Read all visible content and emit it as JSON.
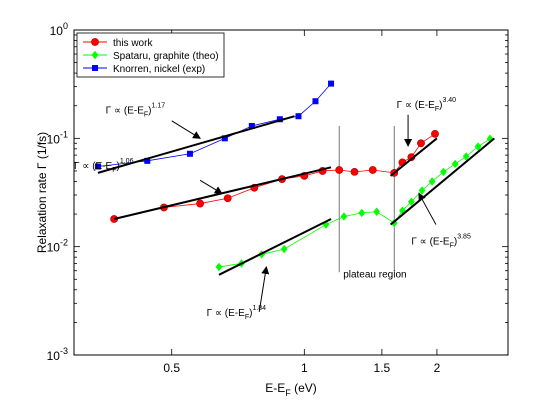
{
  "chart_data": {
    "type": "scatter",
    "xscale": "log",
    "yscale": "log",
    "xlim": [
      0.3,
      2.9
    ],
    "ylim": [
      0.001,
      1
    ],
    "xlabel_main": "E-E",
    "xlabel_sub": "F",
    "xlabel_unit": " (eV)",
    "ylabel": "Relaxation rate Γ (1/fs)",
    "x_ticks": [
      {
        "value": 0.5,
        "label": "0.5"
      },
      {
        "value": 1,
        "label": "1"
      },
      {
        "value": 1.5,
        "label": "1.5"
      },
      {
        "value": 2,
        "label": "2"
      }
    ],
    "y_ticks": [
      {
        "value": 0.001,
        "base": "10",
        "exp": "-3"
      },
      {
        "value": 0.01,
        "base": "10",
        "exp": "-2"
      },
      {
        "value": 0.1,
        "base": "10",
        "exp": "-1"
      },
      {
        "value": 1,
        "base": "10",
        "exp": "0"
      }
    ],
    "legend": {
      "position": "top-left",
      "entries": [
        {
          "name": "this work",
          "color": "#ff0000",
          "marker": "circle"
        },
        {
          "name": "Spataru, graphite (theo)",
          "color": "#00ff00",
          "marker": "diamond"
        },
        {
          "name": "Knorren, nickel (exp)",
          "color": "#0000ff",
          "marker": "square"
        }
      ]
    },
    "series": [
      {
        "name": "this work",
        "color": "#ff0000",
        "marker": "circle",
        "x": [
          0.37,
          0.48,
          0.58,
          0.67,
          0.77,
          0.89,
          1.0,
          1.1,
          1.2,
          1.3,
          1.43,
          1.6,
          1.67,
          1.75,
          1.84,
          1.98
        ],
        "y": [
          0.018,
          0.023,
          0.025,
          0.028,
          0.035,
          0.042,
          0.045,
          0.05,
          0.051,
          0.049,
          0.051,
          0.048,
          0.06,
          0.067,
          0.09,
          0.11
        ]
      },
      {
        "name": "Spataru, graphite (theo)",
        "color": "#00ff00",
        "marker": "diamond",
        "x": [
          0.64,
          0.72,
          0.8,
          0.9,
          1.12,
          1.23,
          1.35,
          1.46,
          1.6,
          1.67,
          1.75,
          1.85,
          1.95,
          2.07,
          2.2,
          2.33,
          2.48,
          2.64
        ],
        "y": [
          0.0065,
          0.007,
          0.0085,
          0.0095,
          0.016,
          0.019,
          0.0205,
          0.021,
          0.0165,
          0.0215,
          0.026,
          0.033,
          0.04,
          0.049,
          0.058,
          0.068,
          0.084,
          0.099
        ]
      },
      {
        "name": "Knorren, nickel (exp)",
        "color": "#0000ff",
        "marker": "square",
        "x": [
          0.34,
          0.44,
          0.55,
          0.66,
          0.76,
          0.88,
          0.97,
          1.06,
          1.15
        ],
        "y": [
          0.055,
          0.062,
          0.072,
          0.1,
          0.13,
          0.15,
          0.16,
          0.22,
          0.32
        ]
      }
    ],
    "fit_lines": [
      {
        "color": "#000000",
        "x": [
          0.34,
          0.95
        ],
        "y": [
          0.048,
          0.16
        ]
      },
      {
        "color": "#000000",
        "x": [
          0.37,
          1.15
        ],
        "y": [
          0.018,
          0.054
        ]
      },
      {
        "color": "#000000",
        "x": [
          0.64,
          1.15
        ],
        "y": [
          0.0055,
          0.018
        ]
      },
      {
        "color": "#000000",
        "x": [
          1.57,
          2.0
        ],
        "y": [
          0.045,
          0.1
        ]
      },
      {
        "color": "#000000",
        "x": [
          1.57,
          2.7
        ],
        "y": [
          0.016,
          0.1
        ]
      }
    ],
    "plateau_lines": [
      1.2,
      1.6
    ],
    "annotations": [
      {
        "prefix": "Γ ∝ (E-E",
        "sub": "F",
        "suffix": ")",
        "exp": "1.17",
        "tx": 0.354,
        "ty": 0.17,
        "ax0": 0.5,
        "ay0": 0.145,
        "ax1": 0.58,
        "ay1": 0.1
      },
      {
        "prefix": "Γ ∝ (E-E",
        "sub": "F",
        "suffix": ")",
        "exp": "1.06",
        "tx": 0.3,
        "ty": 0.052,
        "ax0": 0.58,
        "ay0": 0.041,
        "ax1": 0.65,
        "ay1": 0.031
      },
      {
        "prefix": "Γ ∝ (E-E",
        "sub": "F",
        "suffix": ")",
        "exp": "1.84",
        "tx": 0.6,
        "ty": 0.0023,
        "ax0": 0.79,
        "ay0": 0.0025,
        "ax1": 0.82,
        "ay1": 0.0065
      },
      {
        "prefix": "Γ ∝ (E-E",
        "sub": "F",
        "suffix": ")",
        "exp": "3.40",
        "tx": 1.62,
        "ty": 0.19,
        "ax0": 1.72,
        "ay0": 0.165,
        "ax1": 1.72,
        "ay1": 0.085
      },
      {
        "prefix": "Γ ∝ (E-E",
        "sub": "F",
        "suffix": ")",
        "exp": "3.85",
        "tx": 1.75,
        "ty": 0.0105,
        "ax0": 1.99,
        "ay0": 0.016,
        "ax1": 1.82,
        "ay1": 0.031
      }
    ],
    "plateau_label": {
      "text": "plateau region",
      "x": 1.2,
      "y": 0.0052
    }
  }
}
